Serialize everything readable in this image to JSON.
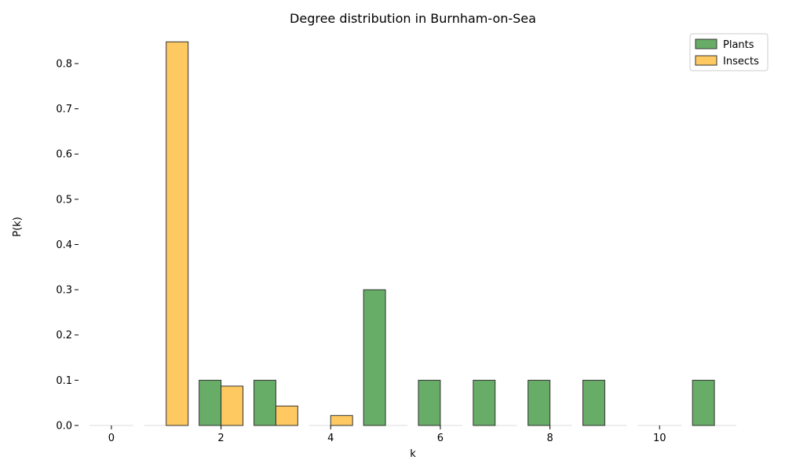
{
  "chart_data": {
    "type": "bar",
    "title": "Degree distribution in Burnham-on-Sea",
    "xlabel": "k",
    "ylabel": "P(k)",
    "x": [
      0,
      1,
      2,
      3,
      4,
      5,
      6,
      7,
      8,
      9,
      10,
      11
    ],
    "xticks": [
      0,
      2,
      4,
      6,
      8,
      10
    ],
    "yticks": [
      0.0,
      0.1,
      0.2,
      0.3,
      0.4,
      0.5,
      0.6,
      0.7,
      0.8
    ],
    "ylim": [
      0,
      0.885
    ],
    "xlim": [
      -0.6,
      11.6
    ],
    "legend_position": "top-right",
    "grid": false,
    "series": [
      {
        "name": "Plants",
        "color": "#4c9f4c",
        "values": [
          0,
          0,
          0.1,
          0.1,
          0,
          0.3,
          0.1,
          0.1,
          0.1,
          0.1,
          0,
          0.1
        ]
      },
      {
        "name": "Insects",
        "color": "#ffbf47",
        "values": [
          0,
          0.848,
          0.087,
          0.043,
          0.022,
          0,
          0,
          0,
          0,
          0,
          0,
          0
        ]
      }
    ]
  }
}
